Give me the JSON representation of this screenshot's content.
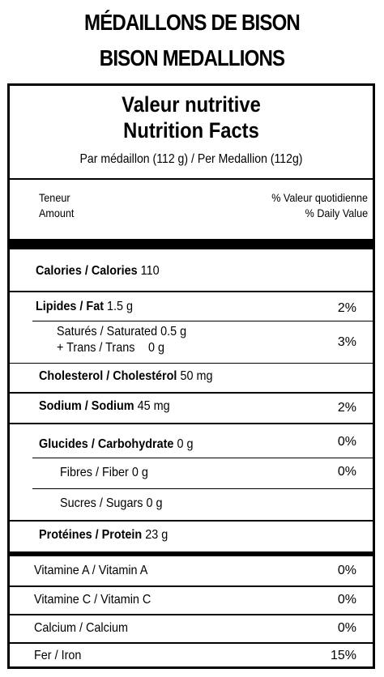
{
  "heading": {
    "line1": "MÉDAILLONS DE BISON",
    "line2": "BISON MEDALLIONS"
  },
  "label": {
    "title_fr": "Valeur nutritive",
    "title_en": "Nutrition Facts",
    "serving": "Par médaillon (112 g) / Per Medallion (112g)",
    "amount_fr": "Teneur",
    "amount_en": "Amount",
    "dv_fr": "% Valeur quotidienne",
    "dv_en": "% Daily Value",
    "calories": {
      "label": "Calories / Calories",
      "value": "110"
    },
    "fat": {
      "label": "Lipides / Fat",
      "value": "1.5 g",
      "pct": "2%"
    },
    "saturated": {
      "label": "Saturés / Saturated",
      "value": "0.5 g"
    },
    "trans": {
      "label": "+ Trans / Trans",
      "value": "0 g"
    },
    "sat_trans_pct": "3%",
    "cholesterol": {
      "label": "Cholesterol / Cholestérol",
      "value": "50 mg"
    },
    "sodium": {
      "label": "Sodium / Sodium",
      "value": "45 mg",
      "pct": "2%"
    },
    "carbohydrate": {
      "label": "Glucides / Carbohydrate",
      "value": "0 g",
      "pct": "0%"
    },
    "fiber": {
      "label": "Fibres / Fiber",
      "value": "0 g",
      "pct": "0%"
    },
    "sugars": {
      "label": "Sucres / Sugars",
      "value": "0 g"
    },
    "protein": {
      "label": "Protéines / Protein",
      "value": "23 g"
    },
    "vitamins": [
      {
        "label": "Vitamine A / Vitamin A",
        "pct": "0%"
      },
      {
        "label": "Vitamine C / Vitamin C",
        "pct": "0%"
      },
      {
        "label": "Calcium / Calcium",
        "pct": "0%"
      },
      {
        "label": "Fer / Iron",
        "pct": "15%"
      }
    ]
  }
}
